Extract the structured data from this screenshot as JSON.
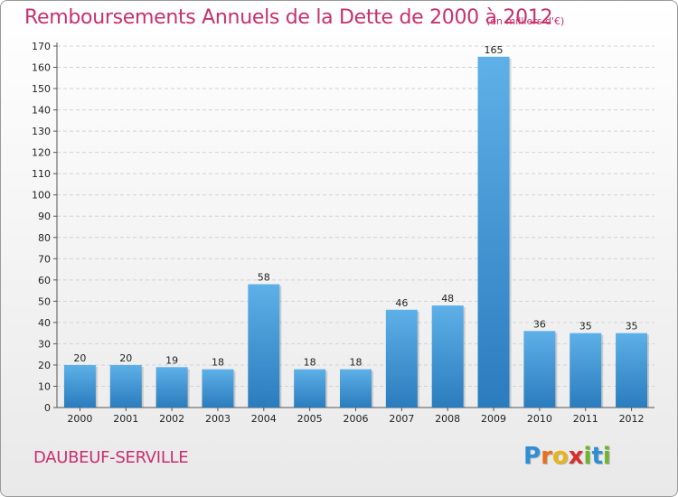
{
  "chart_data": {
    "type": "bar",
    "title": "Remboursements Annuels de la Dette de 2000 à 2012",
    "subtitle": "(en milliers d'€)",
    "categories": [
      "2000",
      "2001",
      "2002",
      "2003",
      "2004",
      "2005",
      "2006",
      "2007",
      "2008",
      "2009",
      "2010",
      "2011",
      "2012"
    ],
    "values": [
      20,
      20,
      19,
      18,
      58,
      18,
      18,
      46,
      48,
      165,
      36,
      35,
      35
    ],
    "ylim": [
      0,
      170
    ],
    "yticks": [
      0,
      10,
      20,
      30,
      40,
      50,
      60,
      70,
      80,
      90,
      100,
      110,
      120,
      130,
      140,
      150,
      160,
      170
    ],
    "grid": true,
    "legend": "none",
    "bar_color_top": "#5eb0e8",
    "bar_color_bottom": "#2a7cbd"
  },
  "commune": "DAUBEUF-SERVILLE",
  "logo": {
    "letters": [
      "P",
      "r",
      "o",
      "x",
      "i",
      "t",
      "i"
    ],
    "colors": [
      "#2e8fd6",
      "#e8721c",
      "#e8b41c",
      "#d6302e",
      "#6fb32e",
      "#2e8fd6",
      "#6fb32e"
    ]
  },
  "colors": {
    "accent": "#c8306f"
  }
}
